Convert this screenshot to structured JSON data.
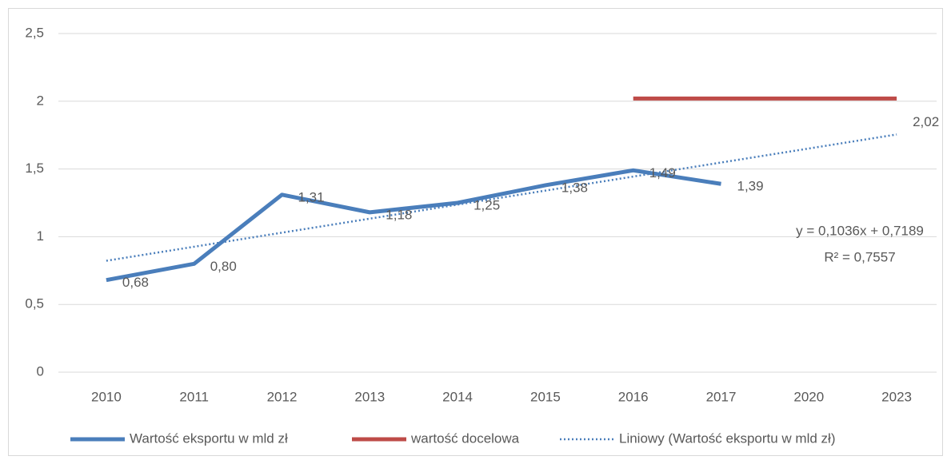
{
  "chart_data": {
    "type": "line",
    "categories": [
      "2010",
      "2011",
      "2012",
      "2013",
      "2014",
      "2015",
      "2016",
      "2017",
      "2020",
      "2023"
    ],
    "series": [
      {
        "name": "Wartość eksportu w mld zł",
        "color": "#4a7ebb",
        "values": [
          0.68,
          0.8,
          1.31,
          1.18,
          1.25,
          1.38,
          1.49,
          1.39,
          null,
          null
        ],
        "value_labels": [
          "0,68",
          "0,80",
          "1,31",
          "1,18",
          "1,25",
          "1,38",
          "1,49",
          "1,39",
          null,
          null
        ]
      },
      {
        "name": "wartość docelowa",
        "color": "#be4b48",
        "values": [
          null,
          null,
          null,
          null,
          null,
          null,
          2.02,
          2.02,
          2.02,
          2.02
        ],
        "value_labels": [
          null,
          null,
          null,
          null,
          null,
          null,
          null,
          null,
          null,
          "2,02"
        ]
      }
    ],
    "trendline": {
      "name": "Liniowy (Wartość eksportu w mld zł)",
      "color": "#4a7ebb",
      "slope": 0.1036,
      "intercept": 0.7189,
      "equation": "y = 0,1036x + 0,7189",
      "r2_label": "R² = 0,7557"
    },
    "ylim": [
      0,
      2.5
    ],
    "yticks": [
      0,
      {
        "value": 0.5,
        "label": "0,5"
      },
      1,
      {
        "value": 1.5,
        "label": "1,5"
      },
      2,
      {
        "value": 2.5,
        "label": "2,5"
      }
    ],
    "grid": true,
    "legend": "bottom"
  }
}
